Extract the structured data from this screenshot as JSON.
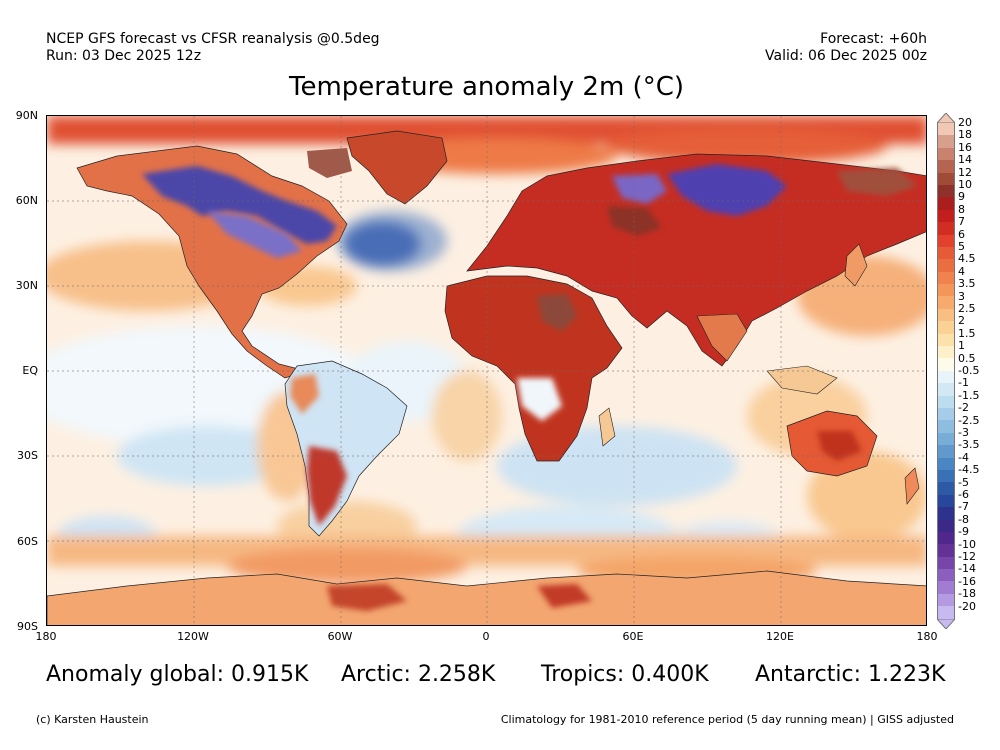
{
  "header": {
    "source": "NCEP GFS forecast vs CFSR reanalysis @0.5deg",
    "run": "Run: 03 Dec 2025 12z",
    "forecast": "Forecast: +60h",
    "valid": "Valid: 06 Dec 2025 00z"
  },
  "title": "Temperature anomaly 2m (°C)",
  "axes": {
    "lat_labels": [
      "90N",
      "60N",
      "30N",
      "EQ",
      "30S",
      "60S",
      "90S"
    ],
    "lon_labels": [
      "180",
      "120W",
      "60W",
      "0",
      "60E",
      "120E",
      "180"
    ]
  },
  "stats": {
    "global": "Anomaly global: 0.915K",
    "arctic": "Arctic: 2.258K",
    "tropics": "Tropics: 0.400K",
    "antarctic": "Antarctic: 1.223K"
  },
  "footer": {
    "credit": "(c) Karsten Haustein",
    "note": "Climatology for 1981-2010 reference period (5 day running mean) | GISS adjusted"
  },
  "colorbar": {
    "labels": [
      "20",
      "18",
      "16",
      "14",
      "12",
      "10",
      "9",
      "8",
      "7",
      "6",
      "5",
      "4.5",
      "4",
      "3.5",
      "3",
      "2.5",
      "2",
      "1.5",
      "1",
      "0.5",
      "-0.5",
      "-1",
      "-1.5",
      "-2",
      "-2.5",
      "-3",
      "-3.5",
      "-4",
      "-4.5",
      "-5",
      "-6",
      "-7",
      "-8",
      "-9",
      "-10",
      "-12",
      "-14",
      "-16",
      "-18",
      "-20"
    ],
    "colors": [
      "#f0c8b4",
      "#d7a08c",
      "#c8826e",
      "#b46450",
      "#a04b37",
      "#8c322b",
      "#aa1e1e",
      "#c31e1e",
      "#d22d23",
      "#e1412d",
      "#e65a37",
      "#eb6e41",
      "#f08250",
      "#f4965a",
      "#f7aa6e",
      "#f9be82",
      "#fbd296",
      "#fde1aa",
      "#fef0c8",
      "#fffbeb",
      "#e8f4fa",
      "#d2e8f5",
      "#bcdcf0",
      "#a5cce8",
      "#8fbde0",
      "#78add7",
      "#6199cd",
      "#4a86c3",
      "#3a70b5",
      "#2d5aa5",
      "#28469b",
      "#2d328c",
      "#3c2887",
      "#50288c",
      "#643296",
      "#7846aa",
      "#8c5fbe",
      "#a07dd2",
      "#b49be1",
      "#c8b9f0"
    ]
  }
}
